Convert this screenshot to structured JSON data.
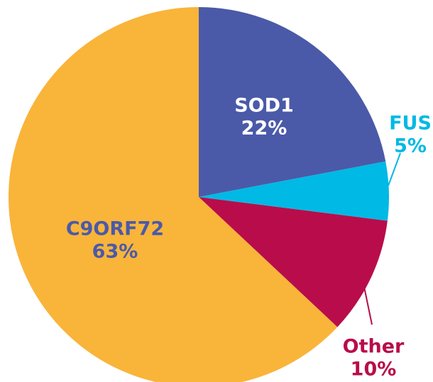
{
  "chart_data": {
    "type": "pie",
    "categories": [
      "SOD1",
      "FUS",
      "Other",
      "C9ORF72"
    ],
    "values": [
      22,
      5,
      10,
      63
    ],
    "value_labels": [
      "22%",
      "5%",
      "10%",
      "63%"
    ],
    "colors": [
      "#4a5aa8",
      "#00b9e4",
      "#b80d4a",
      "#f9b43a"
    ]
  }
}
